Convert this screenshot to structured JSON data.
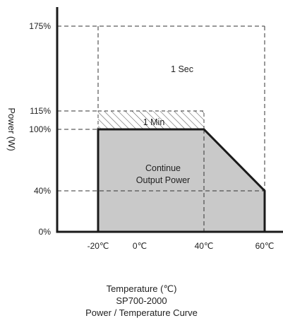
{
  "chart_data": {
    "type": "area",
    "title": "Power / Temperature Curve",
    "model": "SP700-2000",
    "xlabel": "Temperature (℃)",
    "ylabel": "Power (W)",
    "x_ticks": [
      {
        "value": -20,
        "label": "-20℃"
      },
      {
        "value": 0,
        "label": "0℃"
      },
      {
        "value": 40,
        "label": "40℃"
      },
      {
        "value": 60,
        "label": "60℃"
      }
    ],
    "y_ticks": [
      {
        "value": 0,
        "label": "0%"
      },
      {
        "value": 40,
        "label": "40%"
      },
      {
        "value": 100,
        "label": "100%"
      },
      {
        "value": 115,
        "label": "115%"
      },
      {
        "value": 175,
        "label": "175%"
      }
    ],
    "series": [
      {
        "name": "Continue Output Power",
        "points": [
          [
            -20,
            0
          ],
          [
            -20,
            100
          ],
          [
            40,
            100
          ],
          [
            60,
            40
          ],
          [
            60,
            0
          ]
        ]
      }
    ],
    "regions": [
      {
        "label": "1 Min",
        "x": [
          -20,
          40
        ],
        "y": [
          100,
          115
        ],
        "fill": "hatched"
      },
      {
        "label": "1 Sec",
        "x": [
          -20,
          60
        ],
        "y": [
          0,
          175
        ],
        "fill": "none"
      }
    ],
    "annotations": {
      "one_sec": "1 Sec",
      "one_min": "1 Min",
      "continue_line1": "Continue",
      "continue_line2": "Output Power"
    },
    "colors": {
      "area_fill": "#c9c9c9",
      "line": "#1a1a1a"
    }
  }
}
